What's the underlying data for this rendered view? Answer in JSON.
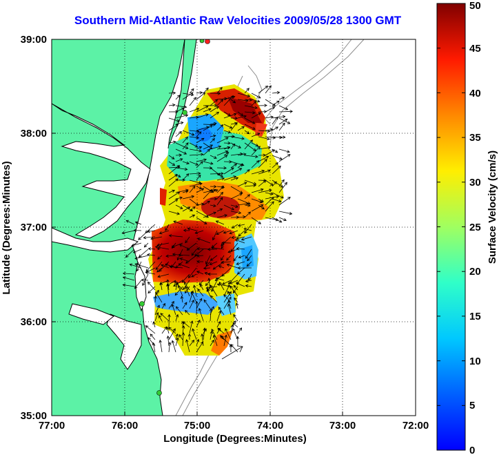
{
  "title": "Southern Mid-Atlantic Raw Velocities 2009/05/28 1300 GMT",
  "map": {
    "xlabel": "Longitude (Degrees:Minutes)",
    "ylabel": "Latitude (Degrees:Minutes)",
    "x_ticks": [
      "77:00",
      "76:00",
      "75:00",
      "74:00",
      "73:00",
      "72:00"
    ],
    "y_ticks": [
      "39:00",
      "38:00",
      "37:00",
      "36:00",
      "35:00"
    ],
    "lon_range": [
      -77,
      -72
    ],
    "lat_range": [
      35,
      39
    ],
    "grid": "dotted",
    "land_color": "#5cf2a6",
    "contour_color": "#8c8c8c",
    "station_color": "#33cc33",
    "station_alt_color": "#ff2020"
  },
  "colorbar": {
    "label": "Surface Velocity (cm/s)",
    "min": 0,
    "max": 50,
    "ticks": [
      "0",
      "5",
      "10",
      "15",
      "20",
      "25",
      "30",
      "35",
      "40",
      "45",
      "50"
    ],
    "colormap": "jet"
  }
}
